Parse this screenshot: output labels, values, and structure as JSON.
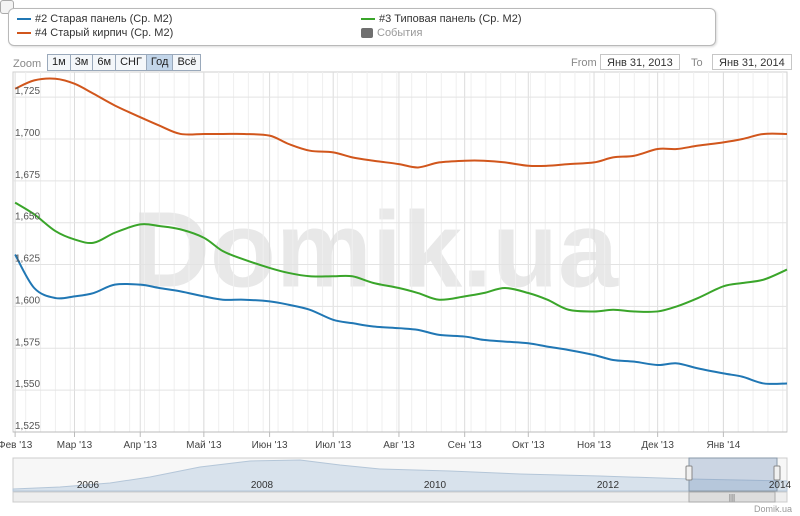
{
  "legend": {
    "items": [
      {
        "label": "#2 Старая панель (Ср. М2)",
        "color": "#2077b4"
      },
      {
        "label": "#3 Типовая панель (Ср. М2)",
        "color": "#3aa52a"
      },
      {
        "label": "#4 Старый кирпич (Ср. М2)",
        "color": "#d1561c"
      },
      {
        "label": "События",
        "color": "#6f6f6f"
      }
    ]
  },
  "toolbar": {
    "zoom_label": "Zoom",
    "zoom_buttons": [
      "1м",
      "3м",
      "6м",
      "СНГ",
      "Год",
      "Всё"
    ],
    "active_zoom": "Год",
    "from_label": "From",
    "from_value": "Янв 31, 2013",
    "to_label": "To",
    "to_value": "Янв 31, 2014"
  },
  "watermark": "Domik.ua",
  "credit": "Domik.ua",
  "chart_data": {
    "type": "line",
    "x": [
      "2013-02-01",
      "2013-02-10",
      "2013-02-20",
      "2013-03-01",
      "2013-03-10",
      "2013-03-20",
      "2013-04-01",
      "2013-04-10",
      "2013-04-20",
      "2013-05-01",
      "2013-05-10",
      "2013-05-20",
      "2013-06-01",
      "2013-06-10",
      "2013-06-20",
      "2013-07-01",
      "2013-07-10",
      "2013-07-20",
      "2013-08-01",
      "2013-08-10",
      "2013-08-20",
      "2013-09-01",
      "2013-09-10",
      "2013-09-20",
      "2013-10-01",
      "2013-10-10",
      "2013-10-20",
      "2013-11-01",
      "2013-11-10",
      "2013-11-20",
      "2013-12-01",
      "2013-12-10",
      "2013-12-20",
      "2014-01-01",
      "2014-01-10",
      "2014-01-20",
      "2014-01-31"
    ],
    "series": [
      {
        "name": "#4 Старый кирпич (Ср. М2)",
        "color": "#d1561c",
        "values": [
          1730,
          1735,
          1736,
          1733,
          1727,
          1720,
          1713,
          1708,
          1703,
          1703,
          1703,
          1703,
          1702,
          1697,
          1693,
          1692,
          1689,
          1687,
          1685,
          1683,
          1686,
          1687,
          1687,
          1686,
          1684,
          1684,
          1685,
          1686,
          1689,
          1690,
          1694,
          1694,
          1696,
          1698,
          1700,
          1703,
          1703
        ]
      },
      {
        "name": "#3 Типовая панель (Ср. М2)",
        "color": "#3aa52a",
        "values": [
          1662,
          1655,
          1645,
          1640,
          1638,
          1644,
          1649,
          1648,
          1646,
          1641,
          1633,
          1628,
          1623,
          1620,
          1618,
          1618,
          1618,
          1614,
          1611,
          1608,
          1604,
          1606,
          1608,
          1611,
          1608,
          1604,
          1598,
          1597,
          1598,
          1597,
          1597,
          1600,
          1605,
          1612,
          1614,
          1616,
          1622
        ]
      },
      {
        "name": "#2 Старая панель (Ср. М2)",
        "color": "#2077b4",
        "values": [
          1631,
          1611,
          1605,
          1606,
          1608,
          1613,
          1613,
          1611,
          1609,
          1606,
          1604,
          1604,
          1603,
          1601,
          1598,
          1592,
          1590,
          1588,
          1587,
          1586,
          1583,
          1582,
          1580,
          1579,
          1578,
          1576,
          1574,
          1571,
          1568,
          1567,
          1565,
          1566,
          1563,
          1560,
          1558,
          1554,
          1554
        ]
      }
    ],
    "ylim": [
      1525,
      1740
    ],
    "yticks": [
      1525,
      1550,
      1575,
      1600,
      1625,
      1650,
      1675,
      1700,
      1725
    ],
    "ytick_labels": [
      "1,525",
      "1,550",
      "1,575",
      "1,600",
      "1,625",
      "1,650",
      "1,675",
      "1,700",
      "1,725"
    ],
    "xlim": [
      "2013-01-31",
      "2014-01-31"
    ],
    "xticks": [
      {
        "date": "2013-02-01",
        "label": "Фев '13"
      },
      {
        "date": "2013-03-01",
        "label": "Мар '13"
      },
      {
        "date": "2013-04-01",
        "label": "Апр '13"
      },
      {
        "date": "2013-05-01",
        "label": "Май '13"
      },
      {
        "date": "2013-06-01",
        "label": "Июн '13"
      },
      {
        "date": "2013-07-01",
        "label": "Июл '13"
      },
      {
        "date": "2013-08-01",
        "label": "Авг '13"
      },
      {
        "date": "2013-09-01",
        "label": "Сен '13"
      },
      {
        "date": "2013-10-01",
        "label": "Окт '13"
      },
      {
        "date": "2013-11-01",
        "label": "Ноя '13"
      },
      {
        "date": "2013-12-01",
        "label": "Дек '13"
      },
      {
        "date": "2014-01-01",
        "label": "Янв '14"
      }
    ],
    "grid": true,
    "navigator": {
      "labels": [
        "2006",
        "2008",
        "2010",
        "2012",
        "2014"
      ],
      "selected_range": [
        "2013-01-31",
        "2014-01-31"
      ]
    }
  }
}
